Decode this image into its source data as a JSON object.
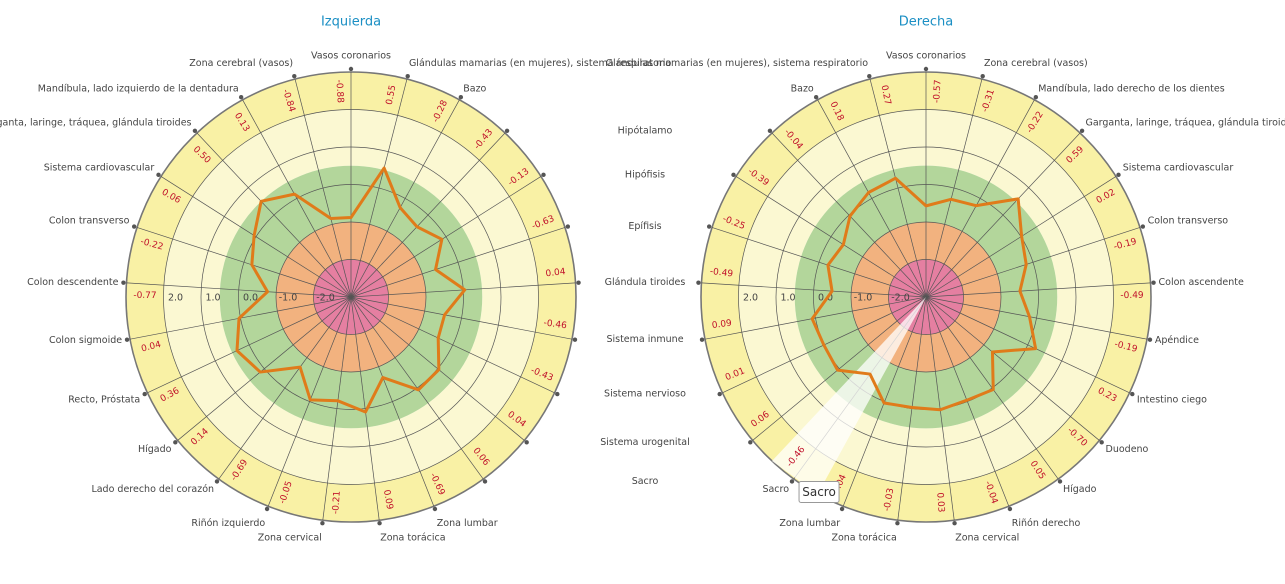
{
  "chart_data": [
    {
      "type": "radar",
      "title": "Izquierda",
      "direction": "clockwise",
      "color": "#e07b1a",
      "categories": [
        "Vasos coronarios",
        "Glándulas mamarias (en mujeres), sistema respiratorio",
        "Bazo",
        "Hipótalamo",
        "Hipófisis",
        "Epífisis",
        "Glándula tiroides",
        "Sistema inmune",
        "Sistema nervioso",
        "Sistema urogenital",
        "Sacro",
        "Zona lumbar",
        "Zona torácica",
        "Zona cervical",
        "Riñón izquierdo",
        "Lado derecho del corazón",
        "Hígado",
        "Recto, Próstata",
        "Colon sigmoide",
        "Colon descendente",
        "Colon transverso",
        "Sistema cardiovascular",
        "Garganta, laringe, tráquea, glándula tiroides",
        "Mandíbula, lado izquierdo de la dentadura",
        "Zona cerebral (vasos)"
      ],
      "values": [
        -0.88,
        0.55,
        -0.28,
        -0.43,
        -0.13,
        -0.63,
        0.04,
        -0.46,
        -0.43,
        0.04,
        0.06,
        -0.69,
        0.09,
        -0.21,
        -0.05,
        -0.69,
        0.14,
        0.36,
        0.04,
        -0.77,
        -0.22,
        0.06,
        0.5,
        0.13,
        -0.84
      ],
      "value_labels": [
        "-0.88",
        "0.55",
        "-0.28",
        "-0.43",
        "-0.13",
        "-0.63",
        "0.04",
        "-0.46",
        "-0.43",
        "0.04",
        "0.06",
        "-0.69",
        "0.09",
        "-0.21",
        "-0.05",
        "-0.69",
        "0.14",
        "0.36",
        "0.04",
        "-0.77",
        "-0.22",
        "0.06",
        "0.50",
        "0.13",
        "-0.84"
      ],
      "ylim": [
        -3,
        3
      ],
      "yticks": [
        {
          "value": -2,
          "label": "-2.0"
        },
        {
          "value": -1,
          "label": "-1.0"
        },
        {
          "value": 0,
          "label": "0.0"
        },
        {
          "value": 1,
          "label": "1.0"
        },
        {
          "value": 2,
          "label": "2.0"
        }
      ],
      "bands": [
        {
          "from": 2,
          "to": 3,
          "color": "#f9f1a5"
        },
        {
          "from": 0.5,
          "to": 2,
          "color": "#fbf8d2"
        },
        {
          "from": -1,
          "to": 0.5,
          "color": "#b3d69b"
        },
        {
          "from": -2,
          "to": -1,
          "color": "#f2b27f"
        },
        {
          "from": -3,
          "to": -2,
          "color": "#e57fa1"
        }
      ]
    },
    {
      "type": "radar",
      "title": "Derecha",
      "direction": "counterclockwise",
      "color": "#e07b1a",
      "categories": [
        "Vasos coronarios",
        "Glándulas mamarias (en mujeres), sistema respiratorio",
        "Bazo",
        null,
        null,
        null,
        null,
        null,
        null,
        null,
        "Sacro",
        "Zona lumbar",
        "Zona torácica",
        "Zona cervical",
        "Riñón derecho",
        "Hígado",
        "Duodeno",
        "Intestino ciego",
        "Apéndice",
        "Colon ascendente",
        "Colon transverso",
        "Sistema cardiovascular",
        "Garganta, laringe, tráquea, glándula tiroides",
        "Mandíbula, lado derecho de los dientes",
        "Zona cerebral (vasos)"
      ],
      "values": [
        -0.57,
        0.27,
        0.18,
        -0.04,
        -0.39,
        -0.25,
        -0.49,
        0.09,
        0.01,
        0.06,
        -0.46,
        0.04,
        -0.03,
        0.03,
        -0.04,
        0.05,
        -0.7,
        0.23,
        -0.19,
        -0.49,
        -0.19,
        0.02,
        0.59,
        -0.22,
        -0.31
      ],
      "value_labels": [
        "-0.57",
        "0.27",
        "0.18",
        "-0.04",
        "-0.39",
        "-0.25",
        "-0.49",
        "0.09",
        "0.01",
        "0.06",
        "-0.46",
        "0.04",
        "-0.03",
        "0.03",
        "-0.04",
        "0.05",
        "-0.70",
        "0.23",
        "-0.19",
        "-0.49",
        "-0.19",
        "0.02",
        "0.59",
        "-0.22",
        "-0.31"
      ],
      "ylim": [
        -3,
        3
      ],
      "yticks": [
        {
          "value": -2,
          "label": "-2.0"
        },
        {
          "value": -1,
          "label": "-1.0"
        },
        {
          "value": 0,
          "label": "0.0"
        },
        {
          "value": 1,
          "label": "1.0"
        },
        {
          "value": 2,
          "label": "2.0"
        }
      ],
      "bands": [
        {
          "from": 2,
          "to": 3,
          "color": "#f9f1a5"
        },
        {
          "from": 0.5,
          "to": 2,
          "color": "#fbf8d2"
        },
        {
          "from": -1,
          "to": 0.5,
          "color": "#b3d69b"
        },
        {
          "from": -2,
          "to": -1,
          "color": "#f2b27f"
        },
        {
          "from": -3,
          "to": -2,
          "color": "#e57fa1"
        }
      ],
      "tooltip_index": 10
    }
  ]
}
